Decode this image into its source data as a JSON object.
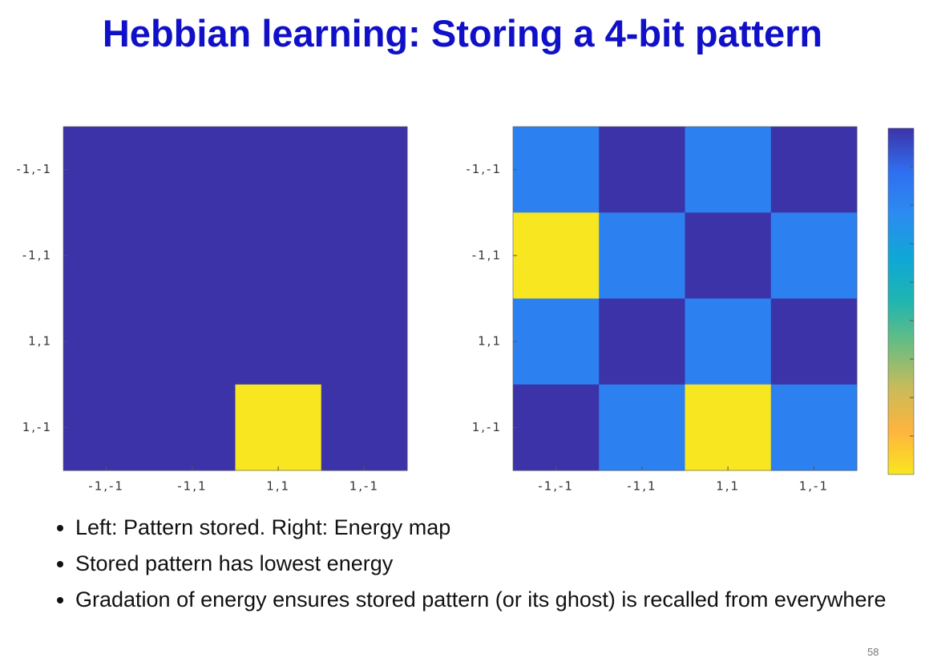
{
  "title": "Hebbian learning: Storing a 4-bit pattern",
  "chart_data": [
    {
      "type": "heatmap",
      "x_categories": [
        "-1,-1",
        "-1,1",
        "1,1",
        "1,-1"
      ],
      "y_categories": [
        "-1,-1",
        "-1,1",
        "1,1",
        "1,-1"
      ],
      "values": [
        [
          0,
          0,
          0,
          0
        ],
        [
          0,
          0,
          0,
          0
        ],
        [
          0,
          0,
          0,
          0
        ],
        [
          0,
          0,
          1,
          0
        ]
      ],
      "zlim": [
        0,
        1
      ],
      "colormap": [
        "#3c33a8",
        "#2f6ff0",
        "#2c8cf0",
        "#0fa7d6",
        "#1fb5b0",
        "#6cbd80",
        "#c8bb5a",
        "#ffb43e",
        "#f8e620"
      ],
      "colorbar": false
    },
    {
      "type": "heatmap",
      "x_categories": [
        "-1,-1",
        "-1,1",
        "1,1",
        "1,-1"
      ],
      "y_categories": [
        "-1,-1",
        "-1,1",
        "1,1",
        "1,-1"
      ],
      "values": [
        [
          0.2,
          0,
          0.2,
          0
        ],
        [
          1,
          0.2,
          0,
          0.2
        ],
        [
          0.2,
          0,
          0.2,
          0
        ],
        [
          0,
          0.2,
          1,
          0.2
        ]
      ],
      "zlim": [
        0,
        1
      ],
      "colormap": [
        "#3c33a8",
        "#2f6ff0",
        "#2c8cf0",
        "#0fa7d6",
        "#1fb5b0",
        "#6cbd80",
        "#c8bb5a",
        "#ffb43e",
        "#f8e620"
      ],
      "colorbar": true
    }
  ],
  "bullets": [
    "Left: Pattern stored.   Right: Energy map",
    "Stored pattern has lowest energy",
    "Gradation of energy ensures stored pattern (or its ghost) is recalled from everywhere"
  ],
  "slide_number": "58"
}
